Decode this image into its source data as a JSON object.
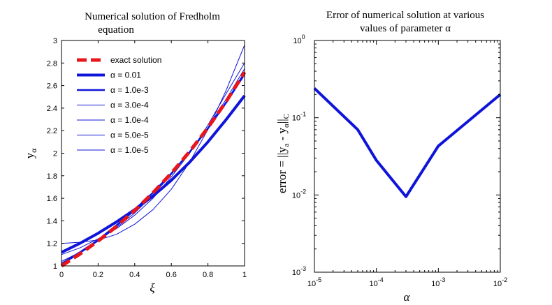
{
  "chart_data": [
    {
      "type": "line",
      "title_lines": [
        "Numerical solution of Fredholm",
        "equation"
      ],
      "xlabel": "ξ",
      "ylabel": {
        "base": "y",
        "sub": "α"
      },
      "xlim": [
        0,
        1
      ],
      "ylim": [
        1,
        3
      ],
      "xticks": [
        "0",
        "0.2",
        "0.4",
        "0.6",
        "0.8",
        "1"
      ],
      "yticks": [
        "1",
        "1.2",
        "1.4",
        "1.6",
        "1.8",
        "2",
        "2.2",
        "2.4",
        "2.6",
        "2.8",
        "3"
      ],
      "grid": false,
      "legend_position": "top-left",
      "x": [
        0,
        0.1,
        0.2,
        0.3,
        0.4,
        0.5,
        0.6,
        0.7,
        0.8,
        0.9,
        1.0
      ],
      "series": [
        {
          "name": "exact solution",
          "color": "#e8151b",
          "style": "dashed",
          "weight": "thick",
          "values": [
            1.0,
            1.105,
            1.221,
            1.35,
            1.492,
            1.649,
            1.822,
            2.014,
            2.226,
            2.46,
            2.718
          ]
        },
        {
          "name": "α = 0.01",
          "color": "#0f14d9",
          "style": "solid",
          "weight": "thick",
          "values": [
            1.12,
            1.2,
            1.29,
            1.39,
            1.5,
            1.62,
            1.76,
            1.92,
            2.1,
            2.3,
            2.51
          ]
        },
        {
          "name": "α = 1.0e-3",
          "color": "#0f14d9",
          "style": "solid",
          "weight": "medium",
          "values": [
            1.02,
            1.12,
            1.23,
            1.36,
            1.5,
            1.65,
            1.82,
            2.01,
            2.22,
            2.45,
            2.7
          ]
        },
        {
          "name": "α = 3.0e-4",
          "color": "#0f14d9",
          "style": "solid",
          "weight": "thin",
          "values": [
            1.01,
            1.11,
            1.22,
            1.35,
            1.49,
            1.65,
            1.82,
            2.01,
            2.22,
            2.46,
            2.72
          ]
        },
        {
          "name": "α = 1.0e-4",
          "color": "#0f14d9",
          "style": "solid",
          "weight": "thin",
          "values": [
            1.04,
            1.12,
            1.22,
            1.34,
            1.47,
            1.63,
            1.81,
            2.01,
            2.23,
            2.48,
            2.75
          ]
        },
        {
          "name": "α = 5.0e-5",
          "color": "#0f14d9",
          "style": "solid",
          "weight": "thin",
          "values": [
            1.1,
            1.16,
            1.24,
            1.33,
            1.45,
            1.6,
            1.79,
            2.0,
            2.25,
            2.53,
            2.8
          ]
        },
        {
          "name": "α = 1.0e-5",
          "color": "#0f14d9",
          "style": "solid",
          "weight": "thin",
          "values": [
            1.2,
            1.21,
            1.23,
            1.28,
            1.37,
            1.5,
            1.68,
            1.92,
            2.21,
            2.56,
            2.96
          ]
        }
      ]
    },
    {
      "type": "line",
      "title_lines": [
        "Error of numerical solution at various",
        "values of parameter α"
      ],
      "xlabel": "α",
      "ylabel": {
        "prefix": "error = ||y",
        "sub1": "a",
        "mid": " - y",
        "sub2": "α",
        "suffix": "||",
        "sub3": "C"
      },
      "xscale": "log",
      "yscale": "log",
      "xlim": [
        1e-05,
        0.01
      ],
      "ylim": [
        0.001,
        1
      ],
      "xticks": [
        {
          "base": "10",
          "exp": "-5"
        },
        {
          "base": "10",
          "exp": "-4"
        },
        {
          "base": "10",
          "exp": "-3"
        },
        {
          "base": "10",
          "exp": "-2"
        }
      ],
      "yticks": [
        {
          "base": "10",
          "exp": "-3"
        },
        {
          "base": "10",
          "exp": "-2"
        },
        {
          "base": "10",
          "exp": "-1"
        },
        {
          "base": "10",
          "exp": "0"
        }
      ],
      "grid": false,
      "series": [
        {
          "color": "#0f14d9",
          "x": [
            1e-05,
            5e-05,
            0.0001,
            0.0003,
            0.001,
            0.01
          ],
          "values": [
            0.24,
            0.07,
            0.028,
            0.0095,
            0.043,
            0.2
          ]
        }
      ]
    }
  ]
}
